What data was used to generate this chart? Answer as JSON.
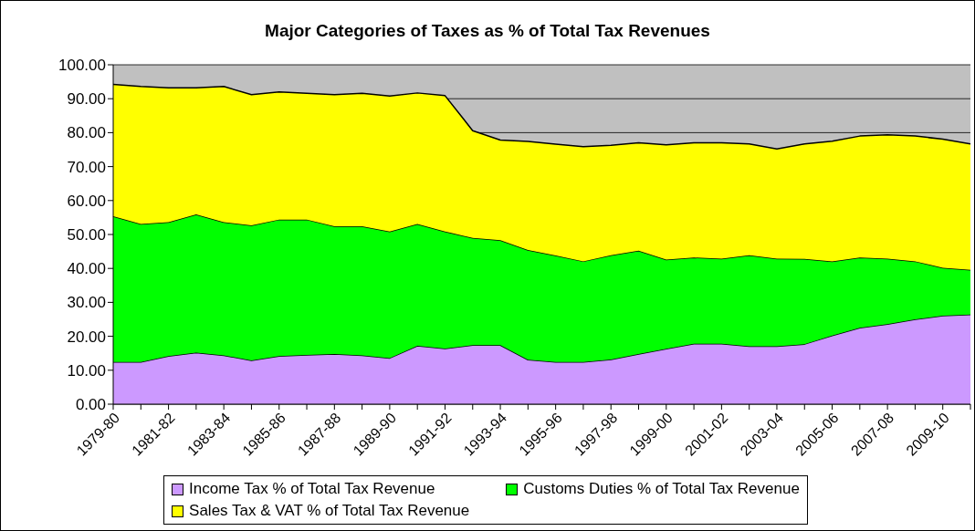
{
  "chart_data": {
    "type": "area",
    "stacked": true,
    "title": "Major Categories of Taxes as % of Total Tax Revenues",
    "categories": [
      "1979-80",
      null,
      "1981-82",
      null,
      "1983-84",
      null,
      "1985-86",
      null,
      "1987-88",
      null,
      "1989-90",
      null,
      "1991-92",
      null,
      "1993-94",
      null,
      "1995-96",
      null,
      "1997-98",
      null,
      "1999-00",
      null,
      "2001-02",
      null,
      "2003-04",
      null,
      "2005-06",
      null,
      "2007-08",
      null,
      "2009-10",
      null
    ],
    "series": [
      {
        "name": "Income Tax % of Total Tax Revenue",
        "color": "#cc99ff",
        "values": [
          12.4,
          12.4,
          14.2,
          15.2,
          14.4,
          12.9,
          14.2,
          14.5,
          14.8,
          14.4,
          13.6,
          17.2,
          16.4,
          17.4,
          17.4,
          13.1,
          12.4,
          12.4,
          13.2,
          14.8,
          16.3,
          17.8,
          17.8,
          17.1,
          17.1,
          17.7,
          20.2,
          22.5,
          23.6,
          25.0,
          26.1,
          26.4
        ]
      },
      {
        "name": "Customs Duties % of Total Tax Revenue",
        "color": "#00ff00",
        "values": [
          43.0,
          40.7,
          39.4,
          40.7,
          39.2,
          39.8,
          40.2,
          39.9,
          37.6,
          38.0,
          37.3,
          35.9,
          34.5,
          31.6,
          30.9,
          32.3,
          31.4,
          29.7,
          30.7,
          30.4,
          26.3,
          25.4,
          25.1,
          26.8,
          25.8,
          25.1,
          21.9,
          20.7,
          19.3,
          17.1,
          14.1,
          13.2
        ]
      },
      {
        "name": "Sales Tax & VAT % of Total Tax Revenue",
        "color": "#ffff00",
        "values": [
          38.8,
          40.5,
          39.6,
          37.3,
          40.0,
          38.5,
          37.6,
          37.2,
          38.8,
          39.2,
          39.9,
          38.6,
          40.0,
          31.6,
          29.5,
          32.0,
          32.8,
          33.8,
          32.4,
          31.8,
          33.8,
          33.8,
          34.1,
          32.8,
          32.3,
          33.9,
          35.4,
          35.8,
          36.5,
          36.9,
          37.9,
          37.1
        ]
      }
    ],
    "ylim": [
      0,
      100
    ],
    "yticks": [
      {
        "value": 0,
        "label": "0.00"
      },
      {
        "value": 10,
        "label": "10.00"
      },
      {
        "value": 20,
        "label": "20.00"
      },
      {
        "value": 30,
        "label": "30.00"
      },
      {
        "value": 40,
        "label": "40.00"
      },
      {
        "value": 50,
        "label": "50.00"
      },
      {
        "value": 60,
        "label": "60.00"
      },
      {
        "value": 70,
        "label": "70.00"
      },
      {
        "value": 80,
        "label": "80.00"
      },
      {
        "value": 90,
        "label": "90.00"
      },
      {
        "value": 100,
        "label": "100.00"
      }
    ],
    "grid": "y",
    "legend": "bottom"
  }
}
